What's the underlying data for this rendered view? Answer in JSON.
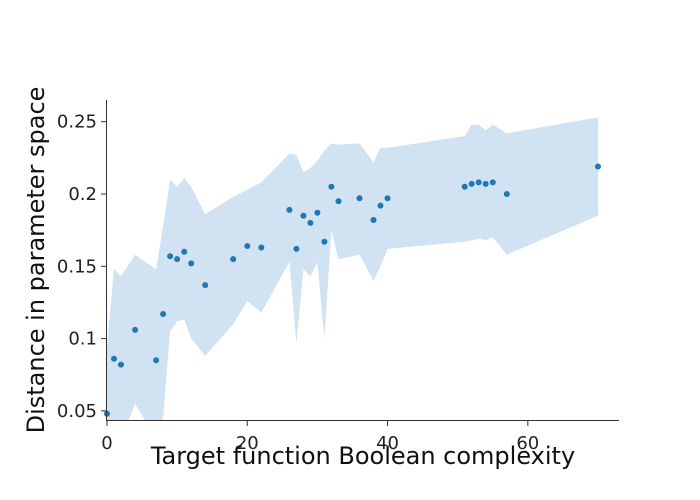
{
  "chart_data": {
    "type": "scatter",
    "title": "",
    "xlabel": "Target function Boolean complexity",
    "ylabel": "Distance in parameter space",
    "xlim": [
      0,
      73
    ],
    "ylim": [
      0.043,
      0.265
    ],
    "x_ticks": [
      0,
      20,
      40,
      60
    ],
    "x_tick_labels": [
      "0",
      "20",
      "40",
      "60"
    ],
    "y_ticks": [
      0.05,
      0.1,
      0.15,
      0.2,
      0.25
    ],
    "y_tick_labels": [
      "0.05",
      "0.1",
      "0.15",
      "0.2",
      "0.25"
    ],
    "grid": false,
    "legend": "none",
    "colors": {
      "points": "#1f77b4",
      "band": "#c6dbef"
    },
    "points": [
      {
        "x": 0,
        "y": 0.048
      },
      {
        "x": 1,
        "y": 0.086
      },
      {
        "x": 2,
        "y": 0.082
      },
      {
        "x": 4,
        "y": 0.106
      },
      {
        "x": 7,
        "y": 0.085
      },
      {
        "x": 8,
        "y": 0.117
      },
      {
        "x": 9,
        "y": 0.157
      },
      {
        "x": 10,
        "y": 0.155
      },
      {
        "x": 11,
        "y": 0.16
      },
      {
        "x": 12,
        "y": 0.152
      },
      {
        "x": 14,
        "y": 0.137
      },
      {
        "x": 18,
        "y": 0.155
      },
      {
        "x": 20,
        "y": 0.164
      },
      {
        "x": 22,
        "y": 0.163
      },
      {
        "x": 26,
        "y": 0.189
      },
      {
        "x": 27,
        "y": 0.162
      },
      {
        "x": 28,
        "y": 0.185
      },
      {
        "x": 29,
        "y": 0.18
      },
      {
        "x": 30,
        "y": 0.187
      },
      {
        "x": 31,
        "y": 0.167
      },
      {
        "x": 32,
        "y": 0.205
      },
      {
        "x": 33,
        "y": 0.195
      },
      {
        "x": 36,
        "y": 0.197
      },
      {
        "x": 38,
        "y": 0.182
      },
      {
        "x": 39,
        "y": 0.192
      },
      {
        "x": 40,
        "y": 0.197
      },
      {
        "x": 51,
        "y": 0.205
      },
      {
        "x": 52,
        "y": 0.207
      },
      {
        "x": 53,
        "y": 0.208
      },
      {
        "x": 54,
        "y": 0.207
      },
      {
        "x": 55,
        "y": 0.208
      },
      {
        "x": 57,
        "y": 0.2
      },
      {
        "x": 70,
        "y": 0.219
      }
    ],
    "band": [
      {
        "x": 0,
        "lower": 0.03,
        "upper": 0.095
      },
      {
        "x": 1,
        "lower": 0.03,
        "upper": 0.148
      },
      {
        "x": 2,
        "lower": 0.03,
        "upper": 0.143
      },
      {
        "x": 4,
        "lower": 0.055,
        "upper": 0.158
      },
      {
        "x": 7,
        "lower": 0.03,
        "upper": 0.148
      },
      {
        "x": 8,
        "lower": 0.045,
        "upper": 0.178
      },
      {
        "x": 9,
        "lower": 0.105,
        "upper": 0.21
      },
      {
        "x": 10,
        "lower": 0.112,
        "upper": 0.205
      },
      {
        "x": 11,
        "lower": 0.113,
        "upper": 0.211
      },
      {
        "x": 12,
        "lower": 0.1,
        "upper": 0.205
      },
      {
        "x": 14,
        "lower": 0.088,
        "upper": 0.186
      },
      {
        "x": 18,
        "lower": 0.11,
        "upper": 0.198
      },
      {
        "x": 20,
        "lower": 0.126,
        "upper": 0.203
      },
      {
        "x": 22,
        "lower": 0.118,
        "upper": 0.208
      },
      {
        "x": 26,
        "lower": 0.153,
        "upper": 0.228
      },
      {
        "x": 27,
        "lower": 0.097,
        "upper": 0.227
      },
      {
        "x": 28,
        "lower": 0.148,
        "upper": 0.215
      },
      {
        "x": 29,
        "lower": 0.143,
        "upper": 0.218
      },
      {
        "x": 30,
        "lower": 0.153,
        "upper": 0.223
      },
      {
        "x": 31,
        "lower": 0.1,
        "upper": 0.23
      },
      {
        "x": 32,
        "lower": 0.175,
        "upper": 0.235
      },
      {
        "x": 33,
        "lower": 0.155,
        "upper": 0.234
      },
      {
        "x": 36,
        "lower": 0.158,
        "upper": 0.235
      },
      {
        "x": 38,
        "lower": 0.14,
        "upper": 0.222
      },
      {
        "x": 39,
        "lower": 0.15,
        "upper": 0.232
      },
      {
        "x": 40,
        "lower": 0.162,
        "upper": 0.232
      },
      {
        "x": 51,
        "lower": 0.167,
        "upper": 0.24
      },
      {
        "x": 52,
        "lower": 0.168,
        "upper": 0.248
      },
      {
        "x": 53,
        "lower": 0.169,
        "upper": 0.248
      },
      {
        "x": 54,
        "lower": 0.168,
        "upper": 0.244
      },
      {
        "x": 55,
        "lower": 0.17,
        "upper": 0.248
      },
      {
        "x": 57,
        "lower": 0.158,
        "upper": 0.242
      },
      {
        "x": 70,
        "lower": 0.185,
        "upper": 0.253
      }
    ]
  }
}
